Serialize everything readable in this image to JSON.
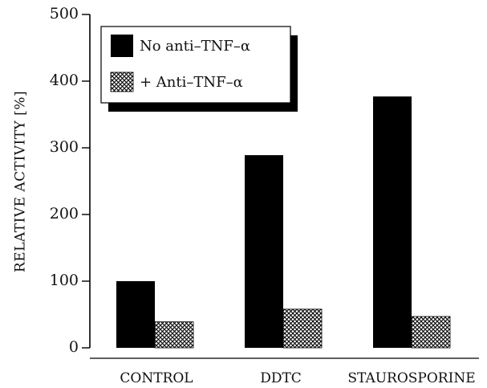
{
  "chart_data": {
    "type": "bar",
    "categories": [
      "CONTROL",
      "DDTC",
      "STAUROSPORINE"
    ],
    "series": [
      {
        "name": "No anti–TNF–α",
        "values": [
          100,
          289,
          377
        ],
        "color": "#000000",
        "pattern": "solid"
      },
      {
        "name": "+ Anti–TNF–α",
        "values": [
          39,
          58,
          47
        ],
        "color": "#000000",
        "pattern": "crosshatch"
      }
    ],
    "title": "",
    "xlabel": "",
    "ylabel": "RELATIVE ACTIVITY [%]",
    "ylim": [
      0,
      500
    ],
    "yticks": [
      "0",
      "100",
      "200",
      "300",
      "400",
      "500"
    ],
    "grid": false,
    "legend_position": "top-left"
  }
}
